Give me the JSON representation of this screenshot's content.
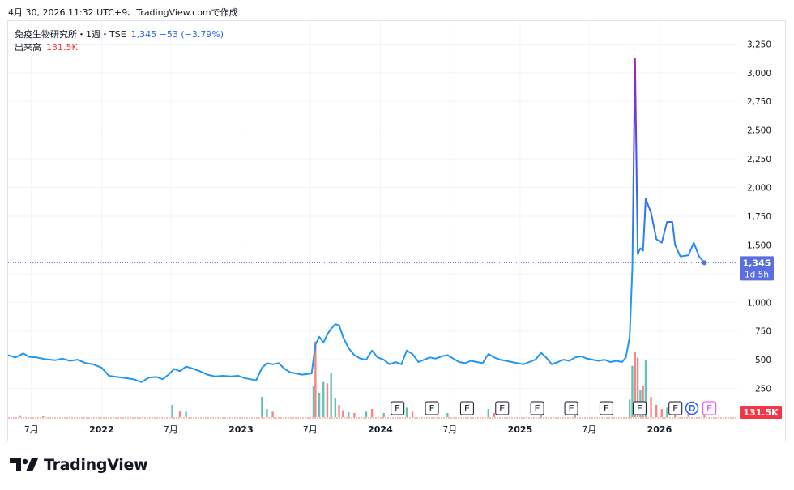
{
  "header": {
    "timestamp": "4月 30, 2026 11:32 UTC+9、TradingView.comで作成"
  },
  "legend": {
    "symbol": "免疫生物研究所・1週・TSE",
    "price_info": "1,345 −53 (−3.79%)",
    "volume_label": "出来高",
    "volume_value": "131.5K"
  },
  "price_label": {
    "value": "1,345",
    "countdown": "1d 5h"
  },
  "volume_label_axis": "131.5K",
  "footer": {
    "brand": "TradingView"
  },
  "colors": {
    "line": "#2196f3",
    "line_spike_top": "#9c27b0",
    "line_spike_bottom": "#3f51ff",
    "price_badge": "#5b6ee1",
    "vol_up": "#26a69a",
    "vol_down": "#ef5350",
    "volume_badge": "#f23645",
    "grid": "#f0f3fa",
    "event_purple": "#e040fb",
    "event_blue": "#2962ff"
  },
  "chart_data": {
    "type": "line",
    "title": "",
    "xlabel": "",
    "ylabel": "",
    "x_start": "2021-05",
    "x_end": "2026-04",
    "ylim": [
      0,
      3450
    ],
    "y_ticks": [
      250,
      500,
      750,
      1000,
      1250,
      1500,
      1750,
      2000,
      2250,
      2500,
      2750,
      3000,
      3250
    ],
    "y_tick_labels": [
      "250",
      "500",
      "750",
      "1,000",
      "",
      "1,500",
      "1,750",
      "2,000",
      "2,250",
      "2,500",
      "2,750",
      "3,000",
      "3,250"
    ],
    "x_ticks": [
      {
        "date": "2021-07",
        "label": "7月"
      },
      {
        "date": "2022-01",
        "label": "2022"
      },
      {
        "date": "2022-07",
        "label": "7月"
      },
      {
        "date": "2023-01",
        "label": "2023"
      },
      {
        "date": "2023-07",
        "label": "7月"
      },
      {
        "date": "2024-01",
        "label": "2024"
      },
      {
        "date": "2024-07",
        "label": "7月"
      },
      {
        "date": "2025-01",
        "label": "2025"
      },
      {
        "date": "2025-07",
        "label": "7月"
      },
      {
        "date": "2026-01",
        "label": "2026"
      }
    ],
    "grid": true,
    "last_value": 1345,
    "series": [
      {
        "values": [
          [
            "2021-05-01",
            540
          ],
          [
            "2021-05-20",
            520
          ],
          [
            "2021-06-10",
            555
          ],
          [
            "2021-06-25",
            525
          ],
          [
            "2021-07-15",
            520
          ],
          [
            "2021-08-05",
            505
          ],
          [
            "2021-09-01",
            495
          ],
          [
            "2021-09-20",
            510
          ],
          [
            "2021-10-10",
            490
          ],
          [
            "2021-10-30",
            500
          ],
          [
            "2021-11-20",
            470
          ],
          [
            "2021-12-10",
            460
          ],
          [
            "2022-01-01",
            430
          ],
          [
            "2022-01-20",
            360
          ],
          [
            "2022-02-10",
            350
          ],
          [
            "2022-03-05",
            340
          ],
          [
            "2022-03-25",
            330
          ],
          [
            "2022-04-15",
            305
          ],
          [
            "2022-05-05",
            345
          ],
          [
            "2022-05-25",
            350
          ],
          [
            "2022-06-10",
            330
          ],
          [
            "2022-06-25",
            370
          ],
          [
            "2022-07-10",
            420
          ],
          [
            "2022-07-25",
            400
          ],
          [
            "2022-08-10",
            440
          ],
          [
            "2022-08-30",
            420
          ],
          [
            "2022-09-15",
            400
          ],
          [
            "2022-10-05",
            370
          ],
          [
            "2022-10-25",
            355
          ],
          [
            "2022-11-15",
            360
          ],
          [
            "2022-12-05",
            355
          ],
          [
            "2022-12-25",
            360
          ],
          [
            "2023-01-10",
            340
          ],
          [
            "2023-01-25",
            330
          ],
          [
            "2023-02-10",
            320
          ],
          [
            "2023-02-25",
            430
          ],
          [
            "2023-03-10",
            470
          ],
          [
            "2023-03-25",
            460
          ],
          [
            "2023-04-10",
            470
          ],
          [
            "2023-04-25",
            420
          ],
          [
            "2023-05-10",
            390
          ],
          [
            "2023-05-25",
            380
          ],
          [
            "2023-06-10",
            370
          ],
          [
            "2023-06-25",
            375
          ],
          [
            "2023-07-05",
            380
          ],
          [
            "2023-07-15",
            630
          ],
          [
            "2023-07-25",
            700
          ],
          [
            "2023-08-05",
            650
          ],
          [
            "2023-08-15",
            720
          ],
          [
            "2023-08-25",
            770
          ],
          [
            "2023-09-05",
            810
          ],
          [
            "2023-09-15",
            800
          ],
          [
            "2023-09-25",
            700
          ],
          [
            "2023-10-10",
            600
          ],
          [
            "2023-10-25",
            540
          ],
          [
            "2023-11-10",
            510
          ],
          [
            "2023-11-25",
            500
          ],
          [
            "2023-12-10",
            580
          ],
          [
            "2023-12-25",
            520
          ],
          [
            "2024-01-10",
            500
          ],
          [
            "2024-01-25",
            460
          ],
          [
            "2024-02-10",
            480
          ],
          [
            "2024-02-25",
            460
          ],
          [
            "2024-03-10",
            580
          ],
          [
            "2024-03-25",
            550
          ],
          [
            "2024-04-10",
            480
          ],
          [
            "2024-04-25",
            500
          ],
          [
            "2024-05-10",
            520
          ],
          [
            "2024-05-25",
            510
          ],
          [
            "2024-06-10",
            530
          ],
          [
            "2024-06-25",
            540
          ],
          [
            "2024-07-10",
            510
          ],
          [
            "2024-07-25",
            480
          ],
          [
            "2024-08-10",
            470
          ],
          [
            "2024-08-25",
            490
          ],
          [
            "2024-09-10",
            480
          ],
          [
            "2024-09-25",
            470
          ],
          [
            "2024-10-10",
            550
          ],
          [
            "2024-10-25",
            520
          ],
          [
            "2024-11-10",
            500
          ],
          [
            "2024-11-25",
            490
          ],
          [
            "2024-12-10",
            480
          ],
          [
            "2024-12-25",
            470
          ],
          [
            "2025-01-10",
            460
          ],
          [
            "2025-01-25",
            480
          ],
          [
            "2025-02-10",
            500
          ],
          [
            "2025-02-25",
            560
          ],
          [
            "2025-03-10",
            520
          ],
          [
            "2025-03-25",
            460
          ],
          [
            "2025-04-10",
            480
          ],
          [
            "2025-04-25",
            500
          ],
          [
            "2025-05-10",
            490
          ],
          [
            "2025-05-25",
            520
          ],
          [
            "2025-06-10",
            530
          ],
          [
            "2025-06-25",
            510
          ],
          [
            "2025-07-10",
            500
          ],
          [
            "2025-07-25",
            490
          ],
          [
            "2025-08-10",
            500
          ],
          [
            "2025-08-25",
            480
          ],
          [
            "2025-09-10",
            490
          ],
          [
            "2025-09-25",
            480
          ],
          [
            "2025-10-05",
            520
          ],
          [
            "2025-10-15",
            700
          ],
          [
            "2025-10-22",
            1300
          ],
          [
            "2025-10-29",
            3120
          ],
          [
            "2025-11-05",
            1420
          ],
          [
            "2025-11-12",
            1470
          ],
          [
            "2025-11-19",
            1450
          ],
          [
            "2025-11-26",
            1900
          ],
          [
            "2025-12-10",
            1780
          ],
          [
            "2025-12-24",
            1550
          ],
          [
            "2026-01-07",
            1520
          ],
          [
            "2026-01-21",
            1700
          ],
          [
            "2026-02-04",
            1700
          ],
          [
            "2026-02-11",
            1500
          ],
          [
            "2026-02-25",
            1400
          ],
          [
            "2026-03-18",
            1410
          ],
          [
            "2026-04-01",
            1520
          ],
          [
            "2026-04-15",
            1400
          ],
          [
            "2026-04-29",
            1345
          ]
        ]
      }
    ],
    "volume": {
      "values": [
        [
          "2021-06-01",
          8,
          "up"
        ],
        [
          "2021-08-01",
          6,
          "down"
        ],
        [
          "2022-07-05",
          90,
          "up"
        ],
        [
          "2022-07-25",
          45,
          "down"
        ],
        [
          "2022-08-10",
          40,
          "up"
        ],
        [
          "2023-02-25",
          150,
          "up"
        ],
        [
          "2023-03-10",
          60,
          "up"
        ],
        [
          "2023-03-25",
          40,
          "down"
        ],
        [
          "2023-07-10",
          230,
          "up"
        ],
        [
          "2023-07-15",
          560,
          "down"
        ],
        [
          "2023-07-25",
          180,
          "up"
        ],
        [
          "2023-08-05",
          260,
          "up"
        ],
        [
          "2023-08-15",
          250,
          "down"
        ],
        [
          "2023-08-25",
          330,
          "up"
        ],
        [
          "2023-09-05",
          140,
          "up"
        ],
        [
          "2023-09-15",
          90,
          "down"
        ],
        [
          "2023-09-25",
          50,
          "down"
        ],
        [
          "2023-10-10",
          35,
          "up"
        ],
        [
          "2023-10-25",
          30,
          "down"
        ],
        [
          "2023-11-25",
          40,
          "up"
        ],
        [
          "2023-12-10",
          60,
          "down"
        ],
        [
          "2024-01-10",
          30,
          "up"
        ],
        [
          "2024-03-10",
          70,
          "up"
        ],
        [
          "2024-03-25",
          40,
          "down"
        ],
        [
          "2024-06-25",
          30,
          "up"
        ],
        [
          "2024-10-10",
          60,
          "up"
        ],
        [
          "2024-10-25",
          30,
          "down"
        ],
        [
          "2025-02-25",
          50,
          "up"
        ],
        [
          "2025-05-25",
          30,
          "up"
        ],
        [
          "2025-10-15",
          130,
          "up"
        ],
        [
          "2025-10-22",
          380,
          "up"
        ],
        [
          "2025-10-29",
          480,
          "down"
        ],
        [
          "2025-11-05",
          440,
          "down"
        ],
        [
          "2025-11-12",
          200,
          "up"
        ],
        [
          "2025-11-19",
          230,
          "down"
        ],
        [
          "2025-11-26",
          420,
          "up"
        ],
        [
          "2025-12-10",
          150,
          "down"
        ],
        [
          "2025-12-24",
          90,
          "down"
        ],
        [
          "2026-01-07",
          60,
          "down"
        ],
        [
          "2026-01-21",
          70,
          "up"
        ],
        [
          "2026-02-11",
          50,
          "down"
        ],
        [
          "2026-03-18",
          30,
          "down"
        ],
        [
          "2026-04-29",
          20,
          "down"
        ]
      ],
      "max": 600
    },
    "events": [
      {
        "date": "2024-02-15",
        "label": "E",
        "kind": "earnings"
      },
      {
        "date": "2024-05-15",
        "label": "E",
        "kind": "earnings"
      },
      {
        "date": "2024-08-15",
        "label": "E",
        "kind": "earnings"
      },
      {
        "date": "2024-11-15",
        "label": "E",
        "kind": "earnings"
      },
      {
        "date": "2025-02-15",
        "label": "E",
        "kind": "earnings"
      },
      {
        "date": "2025-05-15",
        "label": "E",
        "kind": "earnings"
      },
      {
        "date": "2025-08-15",
        "label": "E",
        "kind": "earnings"
      },
      {
        "date": "2025-11-10",
        "label": "E",
        "kind": "earnings"
      },
      {
        "date": "2026-02-12",
        "label": "E",
        "kind": "earnings"
      },
      {
        "date": "2026-03-27",
        "label": "D",
        "kind": "dividend"
      },
      {
        "date": "2026-05-12",
        "label": "E",
        "kind": "earnings-upcoming"
      }
    ]
  }
}
